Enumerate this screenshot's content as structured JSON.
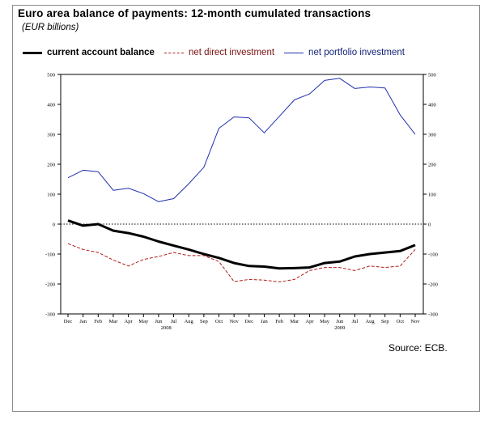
{
  "title": "Euro area balance of payments: 12-month cumulated transactions",
  "subtitle": "(EUR billions)",
  "source": "Source: ECB.",
  "legend": {
    "current": "current account balance",
    "direct": "net direct investment",
    "portfolio": "net portfolio investment"
  },
  "colors": {
    "current": "#000000",
    "direct": "#b01c1c",
    "portfolio": "#1f2fae",
    "zero_line": "#000000"
  },
  "chart_data": {
    "type": "line",
    "categories": [
      "Dec",
      "Jan",
      "Feb",
      "Mar",
      "Apr",
      "May",
      "Jun",
      "Jul",
      "Aug",
      "Sep",
      "Oct",
      "Nov",
      "Dec",
      "Jan",
      "Feb",
      "Mar",
      "Apr",
      "May",
      "Jun",
      "Jul",
      "Aug",
      "Sep",
      "Oct",
      "Nov"
    ],
    "year_labels": [
      "2008",
      "2009"
    ],
    "ylim": [
      -300,
      500
    ],
    "yticks": [
      -300,
      -200,
      -100,
      0,
      100,
      200,
      300,
      400,
      500
    ],
    "ytick_labels": [
      "-300",
      "-200",
      "-100",
      "0",
      "100",
      "200",
      "300",
      "400",
      "500"
    ],
    "grid": false,
    "zero_line": "dotted",
    "legend_position": "top",
    "series": [
      {
        "name": "current account balance",
        "key": "current",
        "style": "solid-thick",
        "values": [
          12,
          -5,
          0,
          -22,
          -30,
          -42,
          -58,
          -72,
          -85,
          -100,
          -113,
          -130,
          -140,
          -142,
          -148,
          -147,
          -145,
          -130,
          -125,
          -108,
          -100,
          -95,
          -90,
          -70
        ]
      },
      {
        "name": "net direct investment",
        "key": "direct",
        "style": "dashed",
        "values": [
          -65,
          -85,
          -95,
          -120,
          -140,
          -118,
          -108,
          -95,
          -105,
          -105,
          -125,
          -192,
          -185,
          -187,
          -193,
          -185,
          -155,
          -145,
          -145,
          -155,
          -140,
          -145,
          -140,
          -85
        ]
      },
      {
        "name": "net portfolio investment",
        "key": "portfolio",
        "style": "solid",
        "values": [
          155,
          180,
          175,
          113,
          120,
          102,
          75,
          85,
          135,
          190,
          320,
          358,
          355,
          305,
          360,
          415,
          435,
          480,
          487,
          453,
          458,
          455,
          365,
          300
        ]
      }
    ]
  }
}
